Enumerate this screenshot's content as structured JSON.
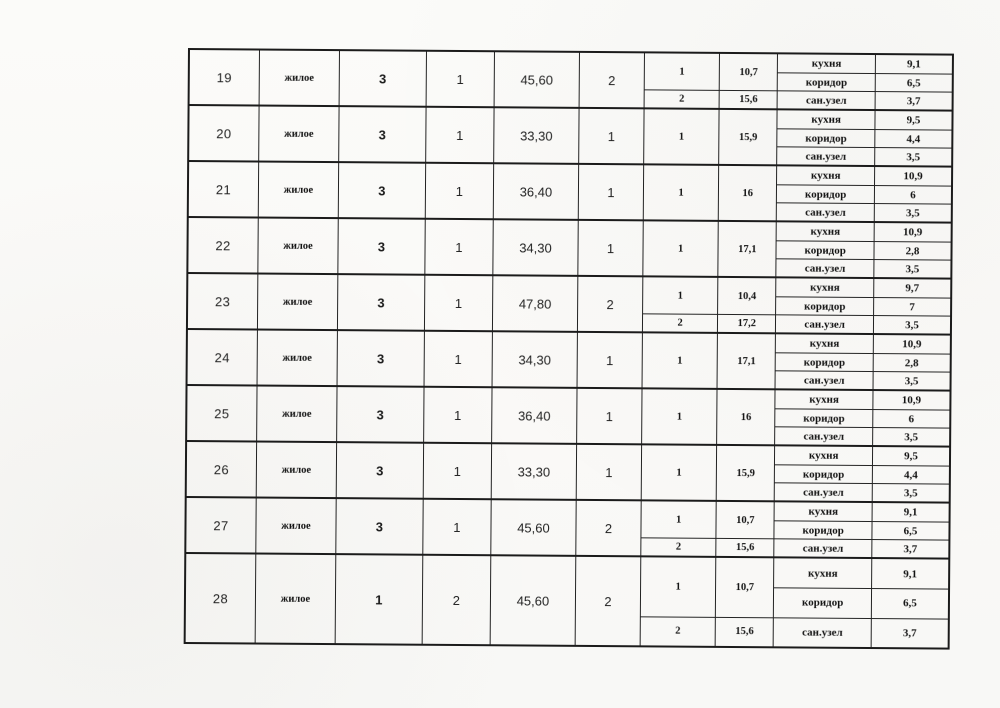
{
  "document": {
    "paper_color": "#faf9f7",
    "ink_color": "#1b1b1b",
    "language": "ru"
  },
  "table": {
    "rows": [
      {
        "num": "19",
        "use": "жилое",
        "v3": "3",
        "v4": "1",
        "total_area": "45,60",
        "rooms_total": "2",
        "rooms": [
          {
            "num": "1",
            "area": "10,7"
          },
          {
            "num": "2",
            "area": "15,6"
          }
        ],
        "aux": [
          {
            "name": "кухня",
            "area": "9,1"
          },
          {
            "name": "коридор",
            "area": "6,5"
          },
          {
            "name": "сан.узел",
            "area": "3,7"
          }
        ],
        "tall": false
      },
      {
        "num": "20",
        "use": "жилое",
        "v3": "3",
        "v4": "1",
        "total_area": "33,30",
        "rooms_total": "1",
        "rooms": [
          {
            "num": "1",
            "area": "15,9"
          }
        ],
        "aux": [
          {
            "name": "кухня",
            "area": "9,5"
          },
          {
            "name": "коридор",
            "area": "4,4"
          },
          {
            "name": "сан.узел",
            "area": "3,5"
          }
        ],
        "tall": false
      },
      {
        "num": "21",
        "use": "жилое",
        "v3": "3",
        "v4": "1",
        "total_area": "36,40",
        "rooms_total": "1",
        "rooms": [
          {
            "num": "1",
            "area": "16"
          }
        ],
        "aux": [
          {
            "name": "кухня",
            "area": "10,9"
          },
          {
            "name": "коридор",
            "area": "6"
          },
          {
            "name": "сан.узел",
            "area": "3,5"
          }
        ],
        "tall": false
      },
      {
        "num": "22",
        "use": "жилое",
        "v3": "3",
        "v4": "1",
        "total_area": "34,30",
        "rooms_total": "1",
        "rooms": [
          {
            "num": "1",
            "area": "17,1"
          }
        ],
        "aux": [
          {
            "name": "кухня",
            "area": "10,9"
          },
          {
            "name": "коридор",
            "area": "2,8"
          },
          {
            "name": "сан.узел",
            "area": "3,5"
          }
        ],
        "tall": false
      },
      {
        "num": "23",
        "use": "жилое",
        "v3": "3",
        "v4": "1",
        "total_area": "47,80",
        "rooms_total": "2",
        "rooms": [
          {
            "num": "1",
            "area": "10,4"
          },
          {
            "num": "2",
            "area": "17,2"
          }
        ],
        "aux": [
          {
            "name": "кухня",
            "area": "9,7"
          },
          {
            "name": "коридор",
            "area": "7"
          },
          {
            "name": "сан.узел",
            "area": "3,5"
          }
        ],
        "tall": false
      },
      {
        "num": "24",
        "use": "жилое",
        "v3": "3",
        "v4": "1",
        "total_area": "34,30",
        "rooms_total": "1",
        "rooms": [
          {
            "num": "1",
            "area": "17,1"
          }
        ],
        "aux": [
          {
            "name": "кухня",
            "area": "10,9"
          },
          {
            "name": "коридор",
            "area": "2,8"
          },
          {
            "name": "сан.узел",
            "area": "3,5"
          }
        ],
        "tall": false
      },
      {
        "num": "25",
        "use": "жилое",
        "v3": "3",
        "v4": "1",
        "total_area": "36,40",
        "rooms_total": "1",
        "rooms": [
          {
            "num": "1",
            "area": "16"
          }
        ],
        "aux": [
          {
            "name": "кухня",
            "area": "10,9"
          },
          {
            "name": "коридор",
            "area": "6"
          },
          {
            "name": "сан.узел",
            "area": "3,5"
          }
        ],
        "tall": false
      },
      {
        "num": "26",
        "use": "жилое",
        "v3": "3",
        "v4": "1",
        "total_area": "33,30",
        "rooms_total": "1",
        "rooms": [
          {
            "num": "1",
            "area": "15,9"
          }
        ],
        "aux": [
          {
            "name": "кухня",
            "area": "9,5"
          },
          {
            "name": "коридор",
            "area": "4,4"
          },
          {
            "name": "сан.узел",
            "area": "3,5"
          }
        ],
        "tall": false
      },
      {
        "num": "27",
        "use": "жилое",
        "v3": "3",
        "v4": "1",
        "total_area": "45,60",
        "rooms_total": "2",
        "rooms": [
          {
            "num": "1",
            "area": "10,7"
          },
          {
            "num": "2",
            "area": "15,6"
          }
        ],
        "aux": [
          {
            "name": "кухня",
            "area": "9,1"
          },
          {
            "name": "коридор",
            "area": "6,5"
          },
          {
            "name": "сан.узел",
            "area": "3,7"
          }
        ],
        "tall": false
      },
      {
        "num": "28",
        "use": "жилое",
        "v3": "1",
        "v4": "2",
        "total_area": "45,60",
        "rooms_total": "2",
        "rooms": [
          {
            "num": "1",
            "area": "10,7"
          },
          {
            "num": "2",
            "area": "15,6"
          }
        ],
        "aux": [
          {
            "name": "кухня",
            "area": "9,1"
          },
          {
            "name": "коридор",
            "area": "6,5"
          },
          {
            "name": "сан.узел",
            "area": "3,7"
          }
        ],
        "tall": true
      }
    ]
  }
}
